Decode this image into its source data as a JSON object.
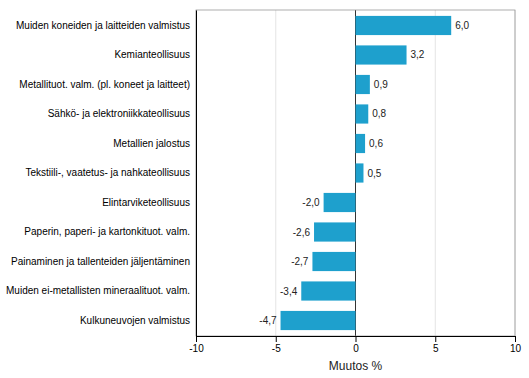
{
  "chart_data": {
    "type": "bar",
    "orientation": "horizontal",
    "categories": [
      "Muiden koneiden ja laitteiden valmistus",
      "Kemianteollisuus",
      "Metallituot. valm. (pl. koneet ja laitteet)",
      "Sähkö- ja elektroniikkateollisuus",
      "Metallien jalostus",
      "Tekstiili-, vaatetus- ja nahkateollisuus",
      "Elintarviketeollisuus",
      "Paperin, paperi- ja kartonkituot. valm.",
      "Painaminen ja tallenteiden jäljentäminen",
      "Muiden ei-metallisten mineraalituot. valm.",
      "Kulkuneuvojen valmistus"
    ],
    "values": [
      6.0,
      3.2,
      0.9,
      0.8,
      0.6,
      0.5,
      -2.0,
      -2.6,
      -2.7,
      -3.4,
      -4.7
    ],
    "value_labels": [
      "6,0",
      "3,2",
      "0,9",
      "0,8",
      "0,6",
      "0,5",
      "-2,0",
      "-2,6",
      "-2,7",
      "-3,4",
      "-4,7"
    ],
    "data_labels": true,
    "color": "#1ea0cd",
    "xlabel": "Muutos %",
    "xlim": [
      -10,
      10
    ],
    "xticks": [
      -10,
      -5,
      0,
      5,
      10
    ],
    "grid": true
  }
}
